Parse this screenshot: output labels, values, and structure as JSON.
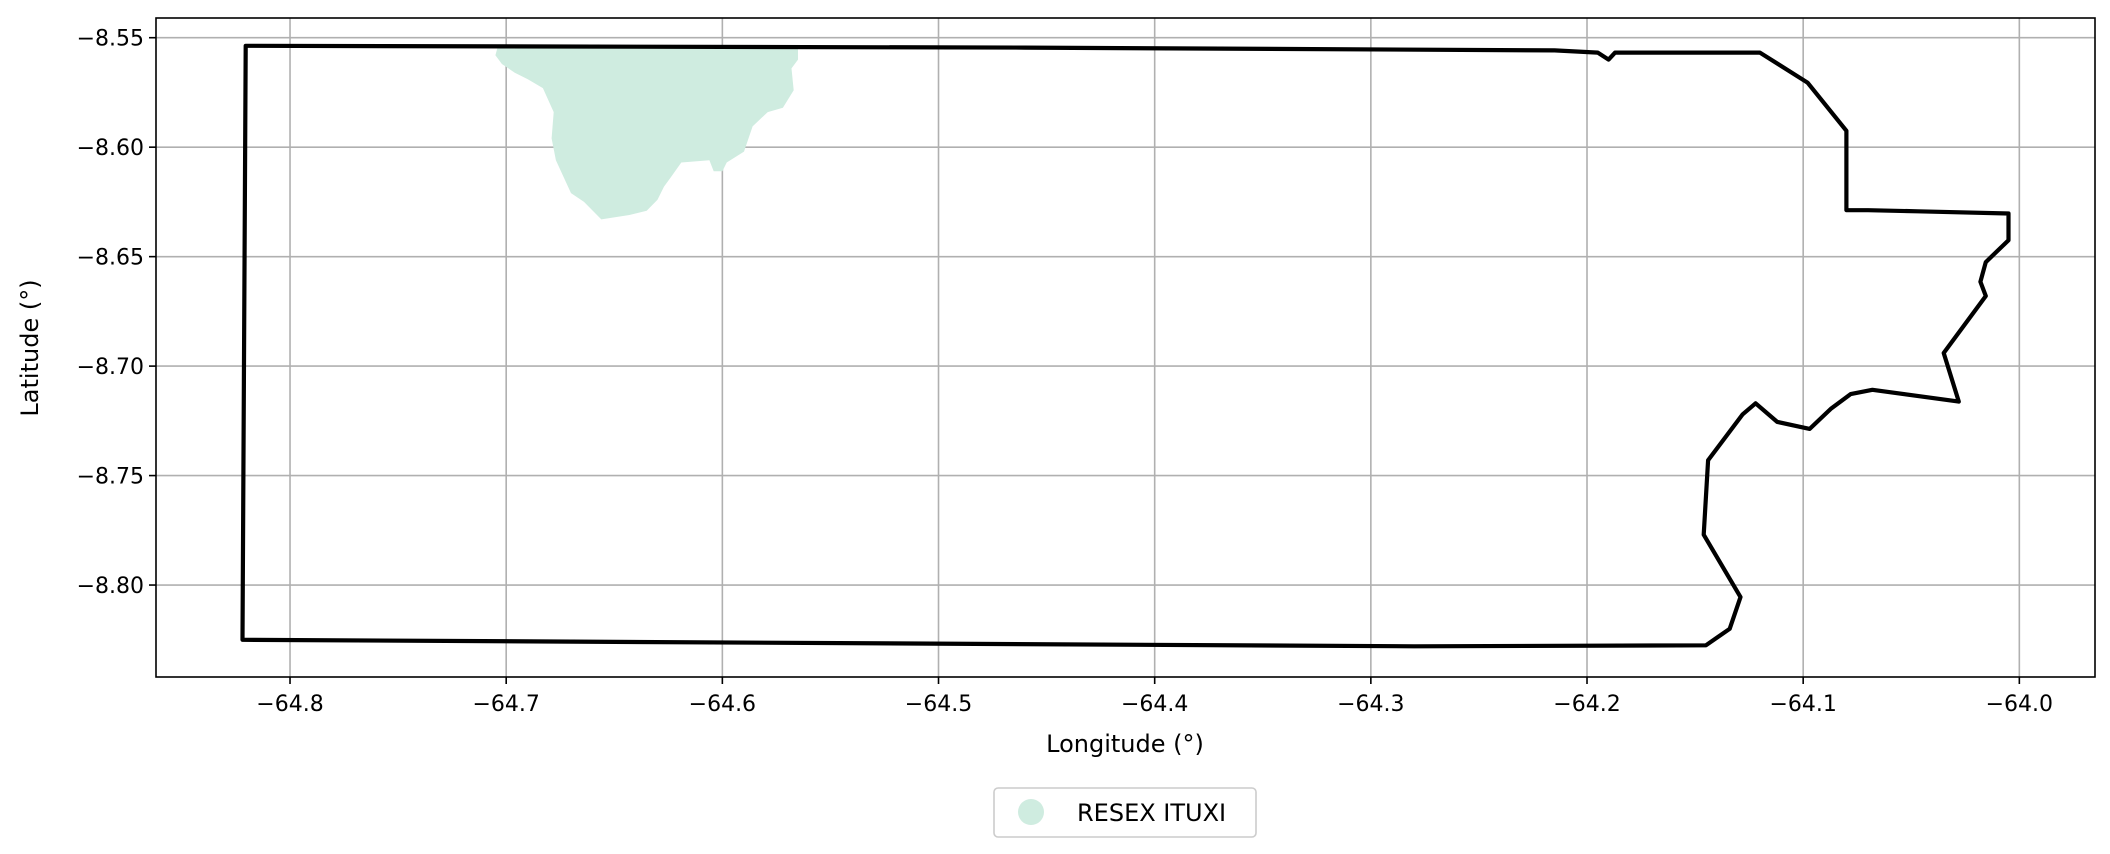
{
  "chart_data": {
    "type": "map",
    "xlabel": "Longitude (°)",
    "ylabel": "Latitude (°)",
    "xlim": [
      -64.862,
      -63.965
    ],
    "ylim": [
      -8.842,
      -8.541
    ],
    "grid": true,
    "legend_position": "bottom-center",
    "x_ticks": [
      {
        "value": -64.8,
        "label": "−64.8"
      },
      {
        "value": -64.7,
        "label": "−64.7"
      },
      {
        "value": -64.6,
        "label": "−64.6"
      },
      {
        "value": -64.5,
        "label": "−64.5"
      },
      {
        "value": -64.4,
        "label": "−64.4"
      },
      {
        "value": -64.3,
        "label": "−64.3"
      },
      {
        "value": -64.2,
        "label": "−64.2"
      },
      {
        "value": -64.1,
        "label": "−64.1"
      },
      {
        "value": -64.0,
        "label": "−64.0"
      }
    ],
    "y_ticks": [
      {
        "value": -8.55,
        "label": "−8.55"
      },
      {
        "value": -8.6,
        "label": "−8.60"
      },
      {
        "value": -8.65,
        "label": "−8.65"
      },
      {
        "value": -8.7,
        "label": "−8.70"
      },
      {
        "value": -8.75,
        "label": "−8.75"
      },
      {
        "value": -8.8,
        "label": "−8.80"
      }
    ],
    "outline": {
      "color": "#000000",
      "points": [
        [
          -64.8205,
          -8.5537
        ],
        [
          -64.46,
          -8.5545
        ],
        [
          -64.215,
          -8.5558
        ],
        [
          -64.195,
          -8.5568
        ],
        [
          -64.19,
          -8.56
        ],
        [
          -64.187,
          -8.5568
        ],
        [
          -64.12,
          -8.5568
        ],
        [
          -64.098,
          -8.5705
        ],
        [
          -64.08,
          -8.5925
        ],
        [
          -64.08,
          -8.6288
        ],
        [
          -64.07,
          -8.6288
        ],
        [
          -64.047,
          -8.6293
        ],
        [
          -64.005,
          -8.6303
        ],
        [
          -64.005,
          -8.6425
        ],
        [
          -64.0155,
          -8.6525
        ],
        [
          -64.018,
          -8.6615
        ],
        [
          -64.0155,
          -8.668
        ],
        [
          -64.035,
          -8.694
        ],
        [
          -64.028,
          -8.7162
        ],
        [
          -64.068,
          -8.7108
        ],
        [
          -64.078,
          -8.7128
        ],
        [
          -64.087,
          -8.7193
        ],
        [
          -64.097,
          -8.7287
        ],
        [
          -64.112,
          -8.7255
        ],
        [
          -64.122,
          -8.717
        ],
        [
          -64.128,
          -8.722
        ],
        [
          -64.144,
          -8.743
        ],
        [
          -64.146,
          -8.777
        ],
        [
          -64.129,
          -8.8055
        ],
        [
          -64.134,
          -8.82
        ],
        [
          -64.145,
          -8.8275
        ],
        [
          -64.28,
          -8.828
        ],
        [
          -64.822,
          -8.825
        ],
        [
          -64.8205,
          -8.5537
        ]
      ]
    },
    "series": [
      {
        "name": "RESEX ITUXI",
        "color": "#cfece0",
        "polygon": [
          [
            -64.704,
            -8.5545
          ],
          [
            -64.565,
            -8.5545
          ],
          [
            -64.565,
            -8.56
          ],
          [
            -64.568,
            -8.564
          ],
          [
            -64.567,
            -8.574
          ],
          [
            -64.572,
            -8.582
          ],
          [
            -64.579,
            -8.584
          ],
          [
            -64.586,
            -8.5905
          ],
          [
            -64.59,
            -8.602
          ],
          [
            -64.598,
            -8.607
          ],
          [
            -64.6,
            -8.611
          ],
          [
            -64.604,
            -8.611
          ],
          [
            -64.606,
            -8.606
          ],
          [
            -64.619,
            -8.607
          ],
          [
            -64.624,
            -8.614
          ],
          [
            -64.627,
            -8.618
          ],
          [
            -64.63,
            -8.624
          ],
          [
            -64.635,
            -8.629
          ],
          [
            -64.643,
            -8.631
          ],
          [
            -64.656,
            -8.633
          ],
          [
            -64.664,
            -8.625
          ],
          [
            -64.67,
            -8.621
          ],
          [
            -64.677,
            -8.606
          ],
          [
            -64.679,
            -8.596
          ],
          [
            -64.678,
            -8.584
          ],
          [
            -64.683,
            -8.573
          ],
          [
            -64.69,
            -8.569
          ],
          [
            -64.696,
            -8.566
          ],
          [
            -64.702,
            -8.562
          ],
          [
            -64.705,
            -8.558
          ],
          [
            -64.704,
            -8.5545
          ]
        ]
      }
    ]
  }
}
